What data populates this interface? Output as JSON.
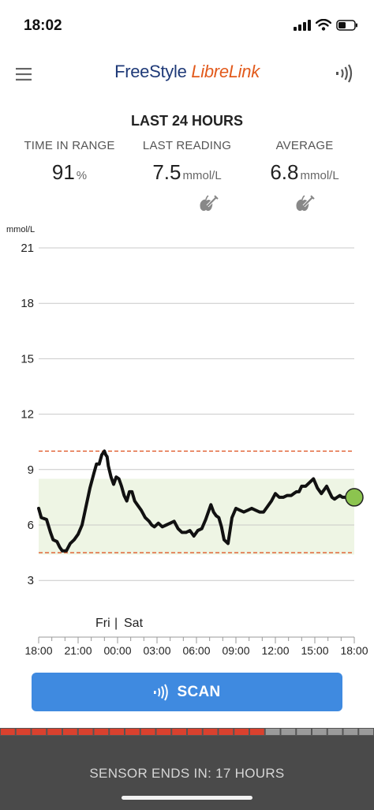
{
  "status_bar": {
    "time": "18:02"
  },
  "header": {
    "brand_part1": "FreeStyle ",
    "brand_part2": "LibreLink"
  },
  "summary": {
    "title": "LAST 24 HOURS",
    "time_in_range": {
      "label": "TIME IN RANGE",
      "value": "91",
      "unit": "%"
    },
    "last_reading": {
      "label": "LAST READING",
      "value": "7.5",
      "unit": "mmol/L"
    },
    "average": {
      "label": "AVERAGE",
      "value": "6.8",
      "unit": "mmol/L"
    }
  },
  "chart_data": {
    "type": "line",
    "ylabel": "mmol/L",
    "y_ticks": [
      "21",
      "18",
      "15",
      "12",
      "9",
      "6",
      "3"
    ],
    "ylim": [
      0,
      21
    ],
    "x_ticks": [
      "18:00",
      "21:00",
      "00:00",
      "03:00",
      "06:00",
      "09:00",
      "12:00",
      "15:00",
      "18:00"
    ],
    "xlim_hours": [
      0,
      24
    ],
    "day_labels": {
      "left": "Fri",
      "separator": "|",
      "right": "Sat"
    },
    "target_range": [
      4.4,
      8.5
    ],
    "target_lines": [
      4.5,
      10.0
    ],
    "series": [
      {
        "x": [
          0,
          0.2,
          0.6,
          0.9,
          1.1,
          1.4,
          1.6,
          1.8,
          2.1,
          2.4,
          2.7,
          3.0,
          3.3,
          3.6,
          3.9,
          4.2,
          4.4,
          4.6,
          4.8,
          5.0,
          5.1,
          5.2,
          5.3,
          5.5,
          5.7,
          5.9,
          6.1,
          6.3,
          6.5,
          6.7,
          6.9,
          7.0,
          7.1,
          7.3,
          7.5,
          7.8,
          8.1,
          8.4,
          8.6,
          8.8,
          9.1,
          9.4,
          9.7,
          10.0,
          10.3,
          10.6,
          10.9,
          11.2,
          11.5,
          11.8,
          12.1,
          12.4,
          12.7,
          12.9,
          13.1,
          13.3,
          13.5,
          13.7,
          13.9,
          14.1,
          14.4,
          14.7,
          15.0,
          15.3,
          15.6,
          15.9,
          16.2,
          16.5,
          16.8,
          17.1,
          17.4,
          17.7,
          18.0,
          18.3,
          18.6,
          18.9,
          19.2,
          19.4,
          19.6,
          19.8,
          20.0,
          20.3,
          20.6,
          20.9,
          21.2,
          21.5,
          21.7,
          21.9,
          22.1,
          22.3,
          22.5,
          22.7,
          22.9,
          23.1,
          23.3,
          23.5
        ],
        "y": [
          6.9,
          6.4,
          6.3,
          5.6,
          5.2,
          5.1,
          4.8,
          4.6,
          4.6,
          5.0,
          5.2,
          5.5,
          6.0,
          7.0,
          8.0,
          8.8,
          9.3,
          9.3,
          9.8,
          10.0,
          9.8,
          9.7,
          9.2,
          8.6,
          8.2,
          8.6,
          8.5,
          8.1,
          7.6,
          7.3,
          7.8,
          7.8,
          7.8,
          7.3,
          7.1,
          6.8,
          6.4,
          6.2,
          6.0,
          5.9,
          6.1,
          5.9,
          6.0,
          6.1,
          6.2,
          5.8,
          5.6,
          5.6,
          5.7,
          5.4,
          5.7,
          5.8,
          6.3,
          6.7,
          7.1,
          6.7,
          6.5,
          6.4,
          5.9,
          5.2,
          5.0,
          6.4,
          6.9,
          6.8,
          6.7,
          6.8,
          6.9,
          6.8,
          6.7,
          6.7,
          7.0,
          7.3,
          7.7,
          7.5,
          7.5,
          7.6,
          7.6,
          7.7,
          7.8,
          7.8,
          8.1,
          8.1,
          8.3,
          8.5,
          8.0,
          7.7,
          7.9,
          8.1,
          7.8,
          7.5,
          7.4,
          7.5,
          7.6,
          7.5,
          7.5,
          7.5
        ]
      }
    ],
    "last_point": {
      "x": 24,
      "y": 7.5
    }
  },
  "scan": {
    "label": "SCAN"
  },
  "sensor": {
    "text": "SENSOR ENDS IN: 17 HOURS",
    "segments_total": 24,
    "segments_elapsed": 17
  },
  "colors": {
    "line": "#111111",
    "target_band": "#eef5e4",
    "target_dash": "#e05a2a",
    "grid": "#c9c9c9",
    "dot_fill": "#8cc44f",
    "scan_bg": "#3f8ae0",
    "sensor_red": "#d9412e"
  }
}
